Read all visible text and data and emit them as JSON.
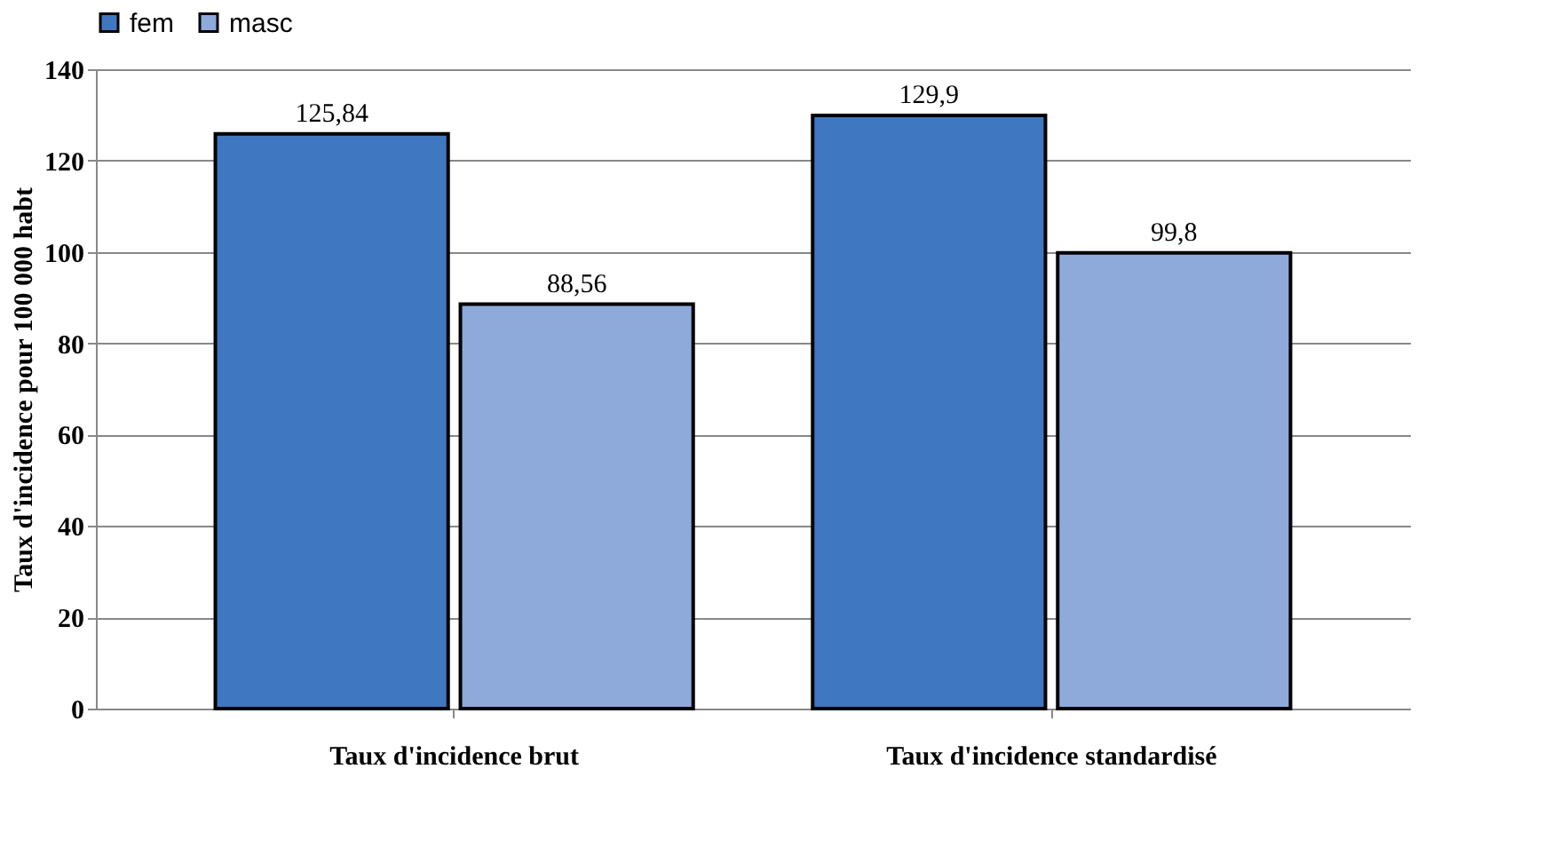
{
  "chart_data": {
    "type": "bar",
    "ylabel": "Taux d'incidence pour 100 000 habt",
    "categories": [
      "Taux d'incidence brut",
      "Taux d'incidence standardisé"
    ],
    "series": [
      {
        "name": "fem",
        "color": "#3f78c0",
        "values": [
          125.84,
          129.9
        ],
        "value_labels": [
          "125,84",
          "129,9"
        ]
      },
      {
        "name": "masc",
        "color": "#8eaadb",
        "values": [
          88.56,
          99.8
        ],
        "value_labels": [
          "88,56",
          "99,8"
        ]
      }
    ],
    "ylim": [
      0,
      140
    ],
    "yticks": [
      0,
      20,
      40,
      60,
      80,
      100,
      120,
      140
    ],
    "grid": "y",
    "legend": "top"
  }
}
